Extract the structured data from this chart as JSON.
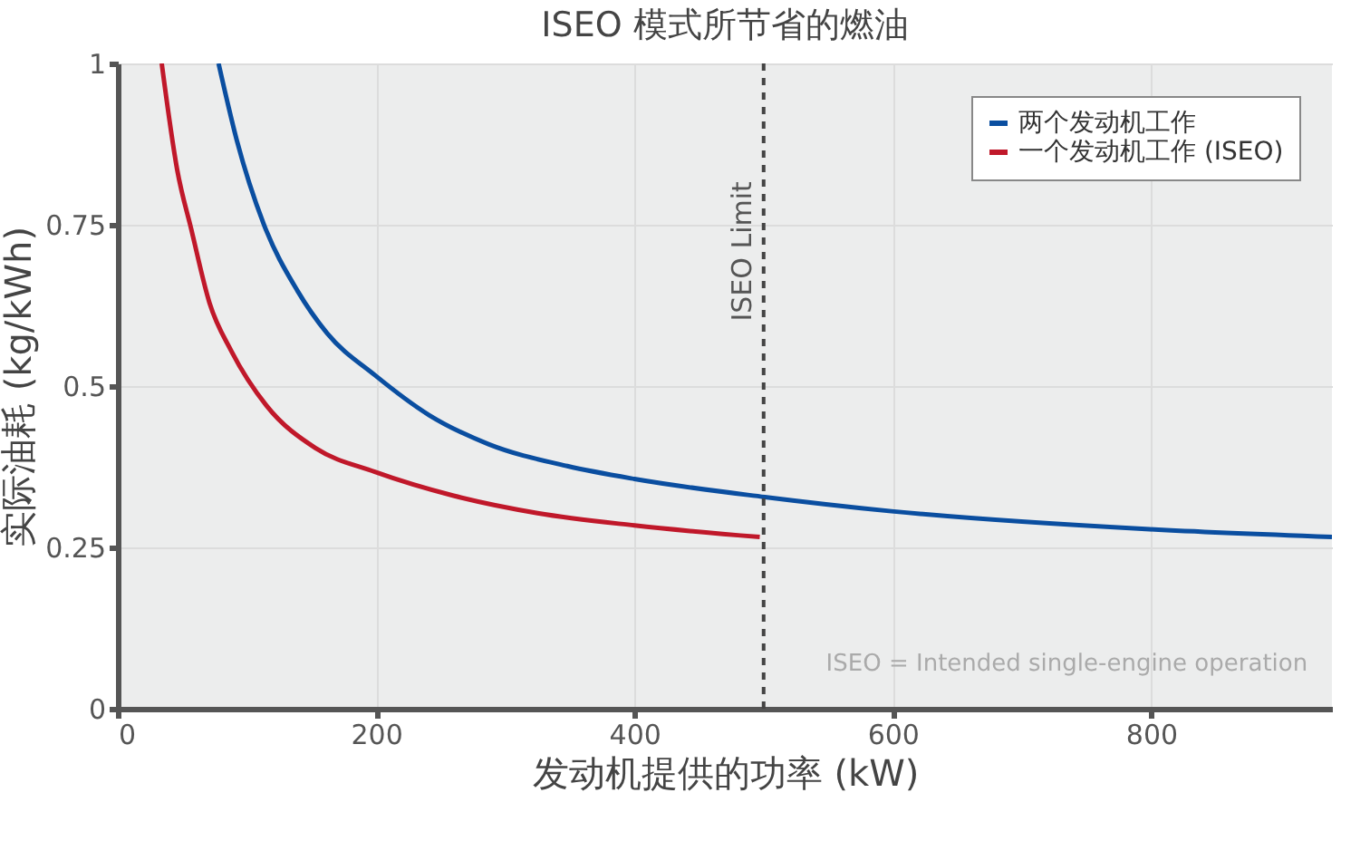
{
  "chart_data": {
    "type": "line",
    "title": "ISEO 模式所节省的燃油",
    "xlabel": "发动机提供的功率 (kW)",
    "ylabel": "实际油耗 (kg/kWh)",
    "xlim": [
      0,
      940
    ],
    "xticks": [
      0,
      200,
      400,
      600,
      800
    ],
    "ylim": [
      0,
      1
    ],
    "yticks": [
      0,
      0.25,
      0.5,
      0.75,
      1
    ],
    "grid": true,
    "legend": "top right",
    "series": [
      {
        "name": "两个发动机工作",
        "color": "#0a4ea0",
        "x": [
          78,
          92,
          113,
          139,
          162,
          199,
          241,
          287,
          348,
          400,
          501,
          599,
          799,
          940
        ],
        "values": [
          1.0,
          0.882,
          0.751,
          0.648,
          0.582,
          0.517,
          0.455,
          0.41,
          0.376,
          0.356,
          0.328,
          0.306,
          0.278,
          0.266
        ]
      },
      {
        "name": "一个发动机工作 (ISEO)",
        "color": "#c0182a",
        "x": [
          34,
          46,
          57,
          71,
          88,
          115,
          153,
          199,
          260,
          325,
          400,
          497
        ],
        "values": [
          1.0,
          0.835,
          0.742,
          0.629,
          0.554,
          0.47,
          0.404,
          0.367,
          0.33,
          0.303,
          0.284,
          0.266
        ]
      }
    ],
    "ref_lines": [
      {
        "axis": "x",
        "value": 500,
        "label": "ISEO Limit",
        "color": "#444444",
        "line_style": "dashed"
      }
    ],
    "annotations": [
      "ISEO = Intended single-engine operation"
    ]
  }
}
